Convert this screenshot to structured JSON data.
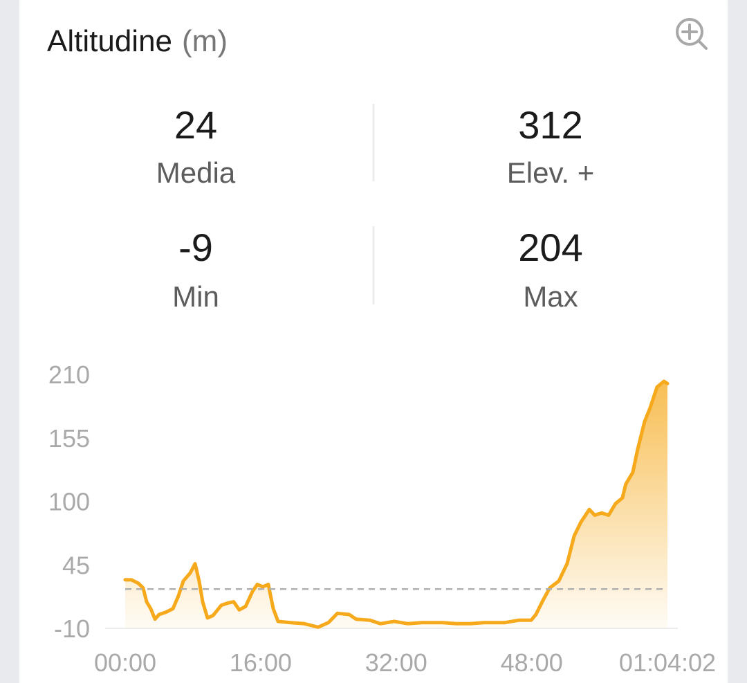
{
  "chart_data": {
    "type": "area",
    "title": "Altitudine",
    "unit": "(m)",
    "x": [
      0,
      44,
      93,
      127,
      152,
      181,
      211,
      240,
      289,
      338,
      377,
      412,
      461,
      495,
      524,
      549,
      583,
      622,
      681,
      730,
      769,
      808,
      853,
      902,
      936,
      975,
      1014,
      1049,
      1083,
      1171,
      1269,
      1367,
      1440,
      1504,
      1587,
      1636,
      1734,
      1808,
      1906,
      2004,
      2102,
      2249,
      2347,
      2445,
      2543,
      2690,
      2788,
      2876,
      2910,
      2959,
      3008,
      3072,
      3131,
      3181,
      3229,
      3288,
      3327,
      3376,
      3425,
      3474,
      3523,
      3547,
      3596,
      3631,
      3680,
      3719,
      3768,
      3817,
      3842
    ],
    "series": [
      {
        "color": "#f5a91b",
        "values": [
          32,
          32,
          29,
          25,
          13,
          7,
          -2,
          2,
          4,
          7,
          18,
          31,
          38,
          46,
          31,
          13,
          -1,
          1,
          10,
          12,
          13,
          6,
          9,
          22,
          28,
          26,
          28,
          7,
          -4,
          -5,
          -6,
          -9,
          -5,
          3,
          2,
          -2,
          -3,
          -6,
          -4,
          -6,
          -5,
          -5,
          -6,
          -6,
          -5,
          -5,
          -3,
          -3,
          2,
          14,
          25,
          31,
          46,
          70,
          82,
          93,
          88,
          90,
          88,
          98,
          103,
          115,
          125,
          145,
          169,
          181,
          199,
          204,
          202
        ]
      }
    ],
    "xlim": [
      0,
      3842
    ],
    "xticks": [
      {
        "value": 0,
        "label": "00:00"
      },
      {
        "value": 960,
        "label": "16:00"
      },
      {
        "value": 1920,
        "label": "32:00"
      },
      {
        "value": 2880,
        "label": "48:00"
      },
      {
        "value": 3842,
        "label": "01:04:02"
      }
    ],
    "ylim": [
      -10,
      210
    ],
    "yticks": [
      -10,
      45,
      100,
      155,
      210
    ]
  },
  "stats": [
    {
      "value": 24,
      "label": "Media"
    },
    {
      "value": 312,
      "label": "Elev. +"
    },
    {
      "value": -9,
      "label": "Min"
    },
    {
      "value": 204,
      "label": "Max"
    }
  ]
}
